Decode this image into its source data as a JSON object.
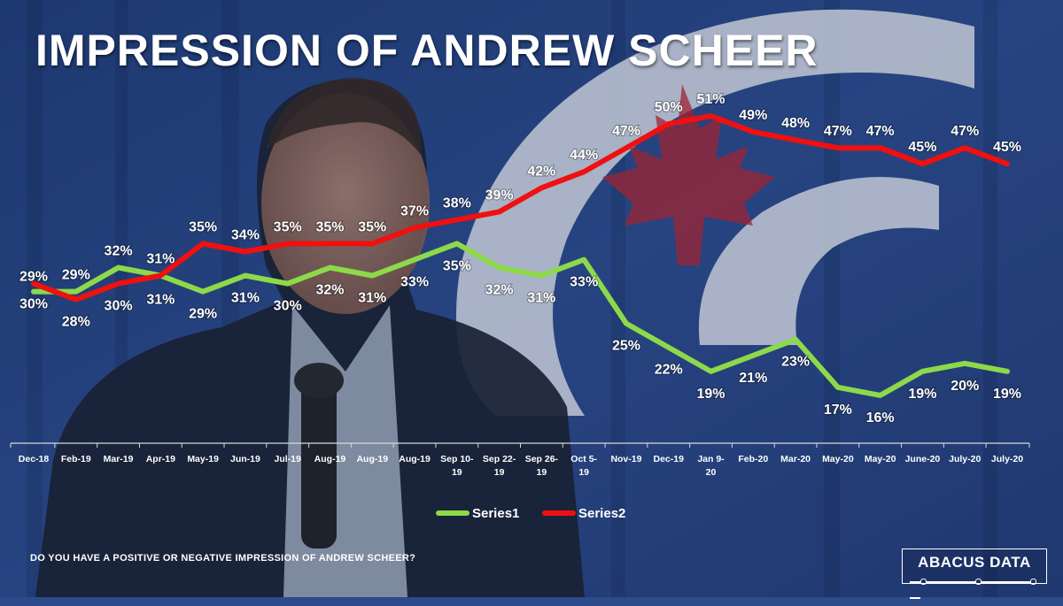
{
  "header": {
    "title": "IMPRESSION OF ANDREW SCHEER"
  },
  "footer": {
    "question": "DO YOU HAVE A POSITIVE OR NEGATIVE IMPRESSION OF ANDREW SCHEER?"
  },
  "logo": {
    "text": "ABACUS DATA"
  },
  "colors": {
    "series1": "#8dd94a",
    "series2": "#f01010",
    "background": "#2d4a8a"
  },
  "chart_data": {
    "type": "line",
    "categories": [
      "Dec-18",
      "Feb-19",
      "Mar-19",
      "Apr-19",
      "May-19",
      "Jun-19",
      "Jul-19",
      "Aug-19",
      "Aug-19",
      "Aug-19",
      "Sep 10-19",
      "Sep 22-19",
      "Sep 26-19",
      "Oct 5-19",
      "Nov-19",
      "Dec-19",
      "Jan 9-20",
      "Feb-20",
      "Mar-20",
      "May-20",
      "May-20",
      "June-20",
      "July-20",
      "July-20"
    ],
    "series": [
      {
        "name": "Series1",
        "values": [
          29,
          29,
          32,
          31,
          29,
          31,
          30,
          32,
          31,
          33,
          35,
          32,
          31,
          33,
          25,
          22,
          19,
          21,
          23,
          17,
          16,
          19,
          20,
          19
        ]
      },
      {
        "name": "Series2",
        "values": [
          30,
          28,
          30,
          31,
          35,
          34,
          35,
          35,
          35,
          37,
          38,
          39,
          42,
          44,
          47,
          50,
          51,
          49,
          48,
          47,
          47,
          45,
          47,
          45
        ]
      }
    ],
    "data_labels": {
      "Series1": [
        "29%",
        "29%",
        "32%",
        "31%",
        "29%",
        "31%",
        "30%",
        "32%",
        "31%",
        "33%",
        "35%",
        "32%",
        "31%",
        "33%",
        "25%",
        "22%",
        "19%",
        "21%",
        "23%",
        "17%",
        "16%",
        "19%",
        "20%",
        "19%"
      ],
      "Series2": [
        "30%",
        "28%",
        "30%",
        "31%",
        "35%",
        "34%",
        "35%",
        "35%",
        "35%",
        "37%",
        "38%",
        "39%",
        "42%",
        "44%",
        "47%",
        "50%",
        "51%",
        "49%",
        "48%",
        "47%",
        "47%",
        "45%",
        "47%",
        "45%"
      ]
    },
    "ylim": [
      10,
      55
    ],
    "grid": false,
    "legend_position": "bottom"
  }
}
